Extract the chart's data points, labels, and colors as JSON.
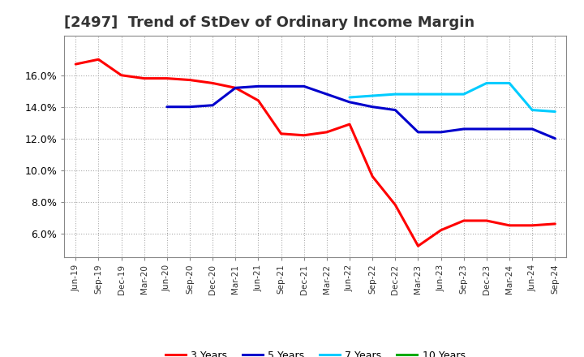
{
  "title": "[2497]  Trend of StDev of Ordinary Income Margin",
  "title_fontsize": 13,
  "title_color": "#333333",
  "background_color": "#ffffff",
  "plot_bg_color": "#ffffff",
  "grid_color": "#aaaaaa",
  "x_labels": [
    "Jun-19",
    "Sep-19",
    "Dec-19",
    "Mar-20",
    "Jun-20",
    "Sep-20",
    "Dec-20",
    "Mar-21",
    "Jun-21",
    "Sep-21",
    "Dec-21",
    "Mar-22",
    "Jun-22",
    "Sep-22",
    "Dec-22",
    "Mar-23",
    "Jun-23",
    "Sep-23",
    "Dec-23",
    "Mar-24",
    "Jun-24",
    "Sep-24"
  ],
  "series": {
    "3 Years": {
      "color": "#ff0000",
      "values": [
        0.167,
        0.17,
        0.16,
        0.158,
        0.158,
        0.157,
        0.155,
        0.152,
        0.144,
        0.123,
        0.122,
        0.124,
        0.129,
        0.096,
        0.078,
        0.052,
        0.062,
        0.068,
        0.068,
        0.065,
        0.065,
        0.066
      ]
    },
    "5 Years": {
      "color": "#0000cc",
      "values": [
        null,
        null,
        null,
        null,
        0.14,
        0.14,
        0.141,
        0.152,
        0.153,
        0.153,
        0.153,
        0.148,
        0.143,
        0.14,
        0.138,
        0.124,
        0.124,
        0.126,
        0.126,
        0.126,
        0.126,
        0.12
      ]
    },
    "7 Years": {
      "color": "#00ccff",
      "values": [
        null,
        null,
        null,
        null,
        null,
        null,
        null,
        null,
        null,
        null,
        null,
        null,
        0.146,
        0.147,
        0.148,
        0.148,
        0.148,
        0.148,
        0.155,
        0.155,
        0.138,
        0.137
      ]
    },
    "10 Years": {
      "color": "#00aa00",
      "values": [
        null,
        null,
        null,
        null,
        null,
        null,
        null,
        null,
        null,
        null,
        null,
        null,
        null,
        null,
        null,
        null,
        null,
        null,
        null,
        null,
        null,
        null
      ]
    }
  },
  "ylim": [
    0.045,
    0.185
  ],
  "yticks": [
    0.06,
    0.08,
    0.1,
    0.12,
    0.14,
    0.16
  ]
}
